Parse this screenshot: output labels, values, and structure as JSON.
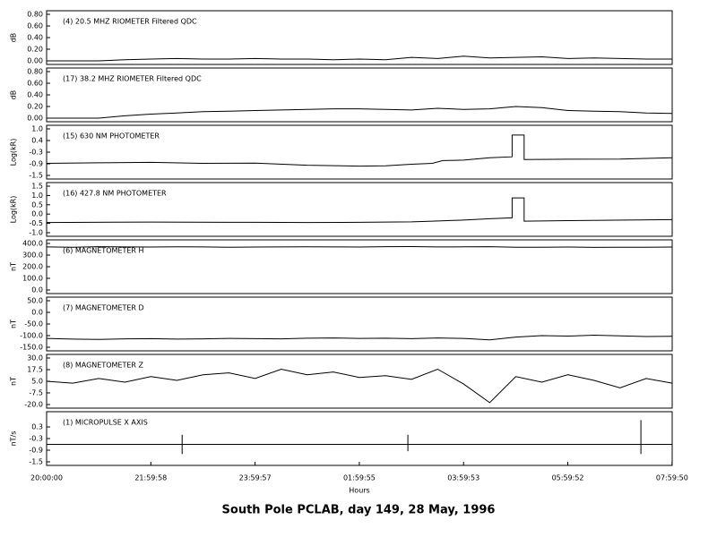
{
  "title": "South Pole PCLAB, day 149, 28 May, 1996",
  "chart_data": [
    {
      "type": "line",
      "label": "(4)  20.5 MHZ RIOMETER  Filtered QDC",
      "ylabel": "dB",
      "ylim": [
        0,
        0.8
      ],
      "yticks": [
        {
          "value": 0.8,
          "label": "0.80"
        },
        {
          "value": 0.6,
          "label": "0.60"
        },
        {
          "value": 0.4,
          "label": "0.40"
        },
        {
          "value": 0.2,
          "label": "0.20"
        },
        {
          "value": 0,
          "label": "0.00"
        }
      ],
      "x": [
        0,
        0.5,
        1,
        1.5,
        2,
        2.5,
        3,
        3.5,
        4,
        4.5,
        5,
        5.5,
        6,
        6.5,
        7,
        7.5,
        8,
        8.5,
        9,
        9.5,
        10,
        10.5,
        11,
        11.5,
        12
      ],
      "values": [
        0,
        0,
        0,
        0.02,
        0.03,
        0.04,
        0.03,
        0.03,
        0.04,
        0.03,
        0.03,
        0.02,
        0.03,
        0.02,
        0.06,
        0.04,
        0.08,
        0.05,
        0.06,
        0.07,
        0.04,
        0.05,
        0.04,
        0.03,
        0.03
      ]
    },
    {
      "type": "line",
      "label": "(17)  38.2 MHZ RIOMETER  Filtered QDC",
      "ylabel": "dB",
      "ylim": [
        0,
        0.8
      ],
      "yticks": [
        {
          "value": 0.8,
          "label": "0.80"
        },
        {
          "value": 0.6,
          "label": "0.60"
        },
        {
          "value": 0.4,
          "label": "0.40"
        },
        {
          "value": 0.2,
          "label": "0.20"
        },
        {
          "value": 0,
          "label": "0.00"
        }
      ],
      "x": [
        0,
        0.5,
        1,
        1.5,
        2,
        2.5,
        3,
        3.5,
        4,
        4.5,
        5,
        5.5,
        6,
        6.5,
        7,
        7.5,
        8,
        8.5,
        9,
        9.5,
        10,
        10.5,
        11,
        11.5,
        12
      ],
      "values": [
        0,
        0,
        0,
        0.04,
        0.07,
        0.09,
        0.11,
        0.12,
        0.13,
        0.14,
        0.15,
        0.16,
        0.16,
        0.15,
        0.14,
        0.17,
        0.15,
        0.16,
        0.2,
        0.18,
        0.13,
        0.12,
        0.11,
        0.09,
        0.08
      ]
    },
    {
      "type": "line",
      "label": "(15)  630 NM PHOTOMETER",
      "ylabel": "Log(kR)",
      "ylim": [
        -1.5,
        1
      ],
      "yticks": [
        {
          "value": 1,
          "label": "1.0"
        },
        {
          "value": 0.375,
          "label": "0.4"
        },
        {
          "value": -0.25,
          "label": "-0.3"
        },
        {
          "value": -0.875,
          "label": "-0.9"
        },
        {
          "value": -1.5,
          "label": "-1.5"
        }
      ],
      "x": [
        0,
        1,
        2,
        3,
        4,
        5,
        6,
        6.5,
        7,
        7.4,
        7.6,
        8,
        8.5,
        8.93,
        8.93,
        9.16,
        9.16,
        10,
        11,
        12
      ],
      "values": [
        -0.85,
        -0.82,
        -0.8,
        -0.85,
        -0.84,
        -0.95,
        -1.0,
        -0.98,
        -0.9,
        -0.85,
        -0.7,
        -0.68,
        -0.55,
        -0.5,
        0.67,
        0.67,
        -0.65,
        -0.63,
        -0.62,
        -0.55
      ]
    },
    {
      "type": "line",
      "label": "(16)  427.8 NM PHOTOMETER",
      "ylabel": "Log(kR)",
      "ylim": [
        -1,
        1.5
      ],
      "yticks": [
        {
          "value": 1.5,
          "label": "1.5"
        },
        {
          "value": 1,
          "label": "1.0"
        },
        {
          "value": 0.5,
          "label": "0.5"
        },
        {
          "value": 0,
          "label": "0.0"
        },
        {
          "value": -0.5,
          "label": "-0.5"
        },
        {
          "value": -1,
          "label": "-1.0"
        }
      ],
      "x": [
        0,
        2,
        4,
        5,
        6,
        7,
        7.4,
        8,
        8.5,
        8.93,
        8.93,
        9.16,
        9.16,
        10,
        12
      ],
      "values": [
        -0.45,
        -0.43,
        -0.44,
        -0.45,
        -0.44,
        -0.42,
        -0.38,
        -0.32,
        -0.25,
        -0.2,
        0.87,
        0.87,
        -0.38,
        -0.35,
        -0.3
      ]
    },
    {
      "type": "line",
      "label": "(6)  MAGNETOMETER H",
      "ylabel": "nT",
      "ylim": [
        0,
        400
      ],
      "yticks": [
        {
          "value": 400,
          "label": "400.0"
        },
        {
          "value": 300,
          "label": "300.0"
        },
        {
          "value": 200,
          "label": "200.0"
        },
        {
          "value": 100,
          "label": "100.0"
        },
        {
          "value": 0,
          "label": "0.0"
        }
      ],
      "x": [
        0,
        0.5,
        1,
        1.5,
        2,
        2.5,
        3,
        3.5,
        4,
        4.5,
        5,
        5.5,
        6,
        6.5,
        7,
        7.5,
        8,
        8.5,
        9,
        9.5,
        10,
        10.5,
        11,
        11.5,
        12
      ],
      "values": [
        370,
        368,
        372,
        370,
        369,
        371,
        370,
        368,
        369,
        370,
        371,
        370,
        369,
        372,
        373,
        370,
        371,
        372,
        368,
        367,
        369,
        366,
        367,
        368,
        369
      ]
    },
    {
      "type": "line",
      "label": "(7)  MAGNETOMETER D",
      "ylabel": "nT",
      "ylim": [
        -150,
        50
      ],
      "yticks": [
        {
          "value": 50,
          "label": "50.0"
        },
        {
          "value": 0,
          "label": "0.0"
        },
        {
          "value": -50,
          "label": "-50.0"
        },
        {
          "value": -100,
          "label": "-100.0"
        },
        {
          "value": -150,
          "label": "-150.0"
        }
      ],
      "x": [
        0,
        0.5,
        1,
        1.5,
        2,
        2.5,
        3,
        3.5,
        4,
        4.5,
        5,
        5.5,
        6,
        6.5,
        7,
        7.5,
        8,
        8.5,
        9,
        9.5,
        10,
        10.5,
        11,
        11.5,
        12
      ],
      "values": [
        -112,
        -115,
        -116,
        -114,
        -113,
        -115,
        -114,
        -112,
        -113,
        -114,
        -111,
        -110,
        -112,
        -111,
        -113,
        -110,
        -112,
        -118,
        -106,
        -100,
        -102,
        -98,
        -101,
        -104,
        -103
      ]
    },
    {
      "type": "line",
      "label": "(8)  MAGNETOMETER Z",
      "ylabel": "nT",
      "ylim": [
        -20,
        30
      ],
      "yticks": [
        {
          "value": 30,
          "label": "30.0"
        },
        {
          "value": 17.5,
          "label": "17.5"
        },
        {
          "value": 5,
          "label": "5.0"
        },
        {
          "value": -7.5,
          "label": "-7.5"
        },
        {
          "value": -20,
          "label": "-20.0"
        }
      ],
      "x": [
        0,
        0.5,
        1,
        1.5,
        2,
        2.5,
        3,
        3.5,
        4,
        4.5,
        5,
        5.5,
        6,
        6.5,
        7,
        7.5,
        8,
        8.5,
        9,
        9.5,
        10,
        10.5,
        11,
        11.5,
        12
      ],
      "values": [
        5,
        3,
        8,
        4,
        10,
        6,
        12,
        14,
        8,
        18,
        12,
        15,
        9,
        11,
        7,
        18,
        2,
        -18,
        10,
        4,
        12,
        6,
        -2,
        8,
        3
      ]
    },
    {
      "type": "line",
      "label": "(1)  MICROPULSE X AXIS",
      "ylabel": "nT/s",
      "ylim": [
        -1.5,
        0.9
      ],
      "yticks": [
        0.3,
        -0.3,
        -0.9,
        -1.5
      ],
      "x": [
        0,
        2.6,
        2.6,
        2.6,
        2.6,
        6.93,
        6.93,
        6.93,
        6.93,
        11.4,
        11.4,
        11.4,
        11.4,
        12
      ],
      "values": [
        -0.6,
        -0.6,
        -0.1,
        -1.1,
        -0.6,
        -0.6,
        -0.1,
        -0.95,
        -0.6,
        -0.6,
        0.65,
        -1.1,
        -0.6,
        -0.6
      ],
      "xlim": [
        0,
        12
      ],
      "xticks": [
        {
          "value": 0,
          "label": "20:00:00"
        },
        {
          "value": 1.99944,
          "label": "21:59:58"
        },
        {
          "value": 3.99917,
          "label": "23:59:57"
        },
        {
          "value": 5.99861,
          "label": "01:59:55"
        },
        {
          "value": 7.99806,
          "label": "03:59:53"
        },
        {
          "value": 9.99778,
          "label": "05:59:52"
        },
        {
          "value": 11.99722,
          "label": "07:59:50"
        }
      ],
      "xlabel": "Hours"
    }
  ]
}
